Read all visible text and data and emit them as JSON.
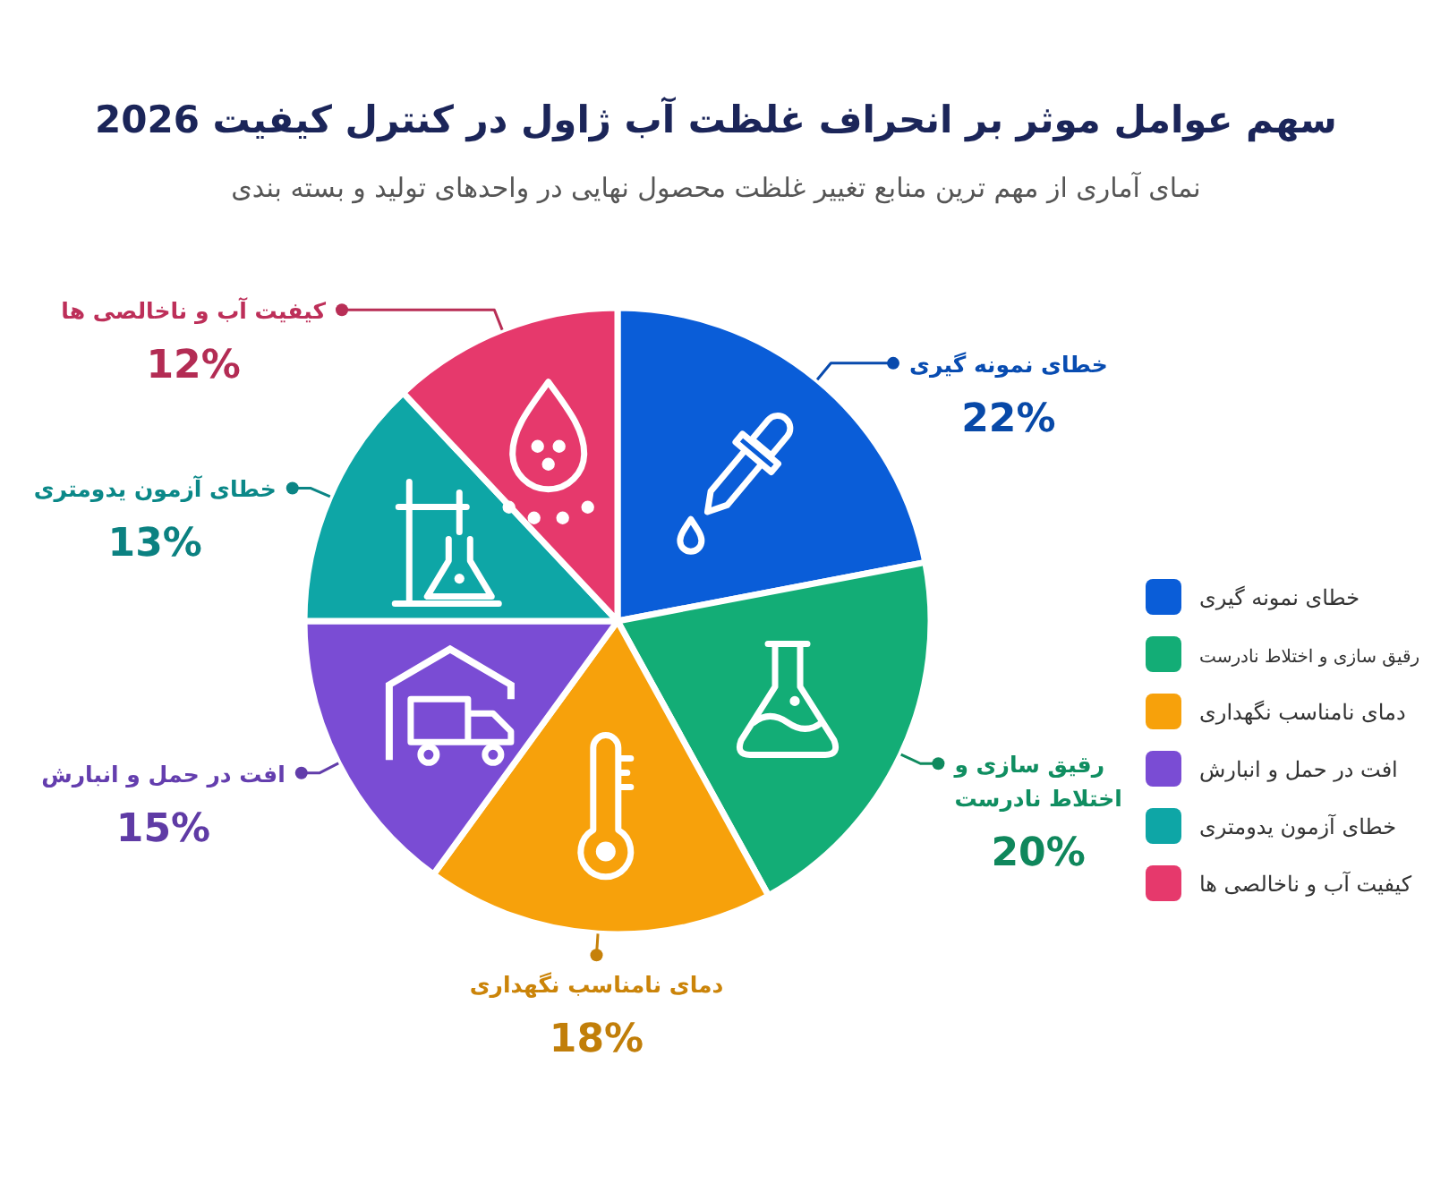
{
  "chart_data": {
    "type": "pie",
    "title": "سهم عوامل موثر بر انحراف غلظت آب ژاول در کنترل کیفیت 2026",
    "subtitle": "نمای آماری از مهم ترین منابع تغییر غلظت محصول نهایی در واحدهای تولید و بسته بندی",
    "categories": [
      "خطای نمونه گیری",
      "رقیق سازی و اختلاط نادرست",
      "دمای نامناسب نگهداری",
      "افت در حمل و انبارش",
      "خطای آزمون یدومتری",
      "کیفیت آب و ناخالصی ها"
    ],
    "values": [
      22,
      20,
      18,
      15,
      13,
      12
    ],
    "colors": [
      "#0a5dd8",
      "#13ad76",
      "#f7a10b",
      "#7a4cd4",
      "#0ea6a6",
      "#e6396c"
    ],
    "value_labels": [
      "22%",
      "20%",
      "18%",
      "15%",
      "13%",
      "12%"
    ],
    "legend": "right"
  }
}
